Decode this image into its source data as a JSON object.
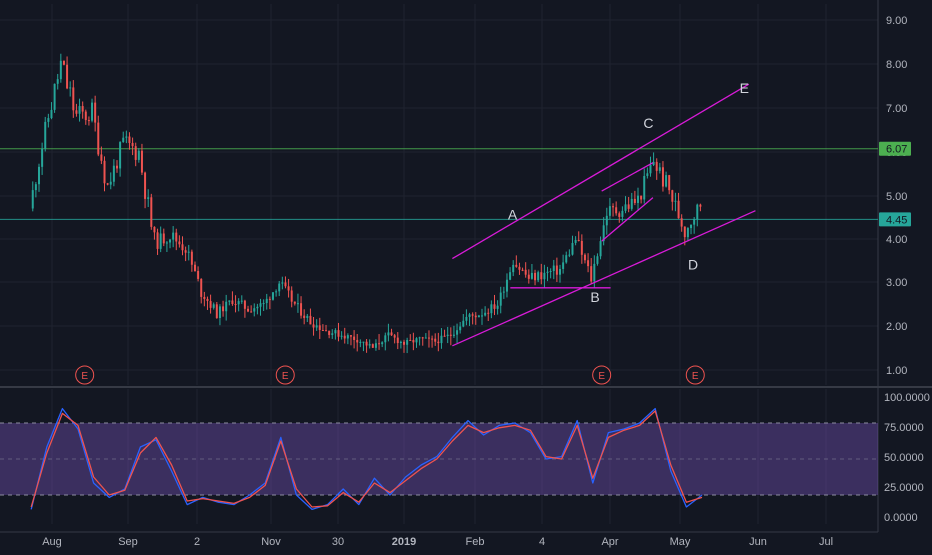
{
  "chart_data": [
    {
      "type": "candlestick",
      "title": "",
      "xlabel": "",
      "ylabel": "",
      "ylim": [
        0.7,
        9.4
      ],
      "y_ticks": [
        "9.00",
        "8.00",
        "7.00",
        "6.00",
        "5.00",
        "4.00",
        "3.00",
        "2.00",
        "1.00"
      ],
      "x_tick_labels": [
        "Aug",
        "Sep",
        "2",
        "Nov",
        "30",
        "2019",
        "Feb",
        "4",
        "Apr",
        "May",
        "Jun",
        "Jul"
      ],
      "x_range": [
        "2018-07-15",
        "2019-07-25"
      ],
      "grid": true,
      "price_level_lines": [
        {
          "value": 6.07,
          "label": "6.07",
          "color": "#4caf50"
        },
        {
          "value": 4.45,
          "label": "4.45",
          "color": "#26a69a"
        }
      ],
      "earnings_markers": [
        {
          "date": "2018-08-08",
          "label": "E"
        },
        {
          "date": "2018-11-06",
          "label": "E"
        },
        {
          "date": "2019-03-28",
          "label": "E"
        },
        {
          "date": "2019-05-09",
          "label": "E"
        }
      ],
      "annotations": [
        {
          "label": "A",
          "date": "2019-02-16",
          "value": 4.45
        },
        {
          "label": "B",
          "date": "2019-03-25",
          "value": 2.55
        },
        {
          "label": "C",
          "date": "2019-04-18",
          "value": 6.55
        },
        {
          "label": "D",
          "date": "2019-05-08",
          "value": 3.3
        },
        {
          "label": "E",
          "date": "2019-05-31",
          "value": 7.35
        }
      ],
      "trendlines": [
        {
          "from": {
            "date": "2019-01-20",
            "value": 3.55
          },
          "to": {
            "date": "2019-06-02",
            "value": 7.55
          }
        },
        {
          "from": {
            "date": "2019-01-20",
            "value": 1.55
          },
          "to": {
            "date": "2019-06-05",
            "value": 4.65
          }
        },
        {
          "from": {
            "date": "2019-02-15",
            "value": 2.88
          },
          "to": {
            "date": "2019-04-01",
            "value": 2.88
          }
        },
        {
          "from": {
            "date": "2019-03-28",
            "value": 5.1
          },
          "to": {
            "date": "2019-04-20",
            "value": 5.75
          }
        },
        {
          "from": {
            "date": "2019-03-28",
            "value": 3.95
          },
          "to": {
            "date": "2019-04-20",
            "value": 4.95
          }
        }
      ],
      "colors": {
        "up": "#26a69a",
        "down": "#ef5350",
        "trendline": "#d81bd8"
      },
      "series": [
        {
          "x": [
            "2018-07-15",
            "2018-07-22",
            "2018-07-29",
            "2018-08-05",
            "2018-08-12",
            "2018-08-19",
            "2018-08-26",
            "2018-09-02",
            "2018-09-09",
            "2018-09-16",
            "2018-09-23",
            "2018-09-30",
            "2018-10-07",
            "2018-10-14",
            "2018-10-21",
            "2018-10-28",
            "2018-11-04",
            "2018-11-11",
            "2018-11-18",
            "2018-11-25",
            "2018-12-02",
            "2018-12-09",
            "2018-12-16",
            "2018-12-23",
            "2018-12-30",
            "2019-01-06",
            "2019-01-13",
            "2019-01-20",
            "2019-01-27",
            "2019-02-03",
            "2019-02-10",
            "2019-02-17",
            "2019-02-24",
            "2019-03-03",
            "2019-03-10",
            "2019-03-17",
            "2019-03-24",
            "2019-03-31",
            "2019-04-07",
            "2019-04-14",
            "2019-04-21",
            "2019-04-28",
            "2019-05-05",
            "2019-05-12"
          ],
          "close": [
            4.7,
            6.5,
            8.0,
            6.8,
            6.9,
            5.2,
            6.2,
            6.0,
            3.9,
            4.1,
            3.8,
            2.8,
            2.3,
            2.6,
            2.4,
            2.5,
            3.0,
            2.5,
            2.1,
            1.9,
            1.8,
            1.7,
            1.5,
            1.8,
            1.6,
            1.7,
            1.65,
            1.8,
            2.2,
            2.3,
            2.5,
            3.5,
            3.1,
            3.2,
            3.3,
            4.0,
            3.1,
            4.6,
            4.7,
            4.9,
            5.8,
            5.1,
            4.2,
            4.8
          ]
        }
      ]
    },
    {
      "type": "line",
      "title": "",
      "ylim": [
        0,
        100
      ],
      "y_ticks": [
        "100.0000",
        "75.0000",
        "50.0000",
        "25.0000",
        "0.0000"
      ],
      "band": [
        20,
        80
      ],
      "series": [
        {
          "color": "#2962ff",
          "x": [
            "2018-07-15",
            "2018-07-22",
            "2018-07-29",
            "2018-08-05",
            "2018-08-12",
            "2018-08-19",
            "2018-08-26",
            "2018-09-02",
            "2018-09-09",
            "2018-09-16",
            "2018-09-23",
            "2018-09-30",
            "2018-10-07",
            "2018-10-14",
            "2018-10-21",
            "2018-10-28",
            "2018-11-04",
            "2018-11-11",
            "2018-11-18",
            "2018-11-25",
            "2018-12-02",
            "2018-12-09",
            "2018-12-16",
            "2018-12-23",
            "2018-12-30",
            "2019-01-06",
            "2019-01-13",
            "2019-01-20",
            "2019-01-27",
            "2019-02-03",
            "2019-02-10",
            "2019-02-17",
            "2019-02-24",
            "2019-03-03",
            "2019-03-10",
            "2019-03-17",
            "2019-03-24",
            "2019-03-31",
            "2019-04-07",
            "2019-04-14",
            "2019-04-21",
            "2019-04-28",
            "2019-05-05",
            "2019-05-12"
          ],
          "values": [
            8,
            60,
            92,
            75,
            30,
            18,
            25,
            60,
            66,
            40,
            12,
            18,
            14,
            12,
            20,
            30,
            68,
            20,
            8,
            12,
            25,
            12,
            34,
            20,
            35,
            45,
            52,
            68,
            82,
            70,
            78,
            80,
            72,
            50,
            52,
            82,
            30,
            72,
            75,
            80,
            92,
            40,
            10,
            20
          ]
        },
        {
          "color": "#ef5350",
          "x": [
            "2018-07-15",
            "2018-07-22",
            "2018-07-29",
            "2018-08-05",
            "2018-08-12",
            "2018-08-19",
            "2018-08-26",
            "2018-09-02",
            "2018-09-09",
            "2018-09-16",
            "2018-09-23",
            "2018-09-30",
            "2018-10-07",
            "2018-10-14",
            "2018-10-21",
            "2018-10-28",
            "2018-11-04",
            "2018-11-11",
            "2018-11-18",
            "2018-11-25",
            "2018-12-02",
            "2018-12-09",
            "2018-12-16",
            "2018-12-23",
            "2018-12-30",
            "2019-01-06",
            "2019-01-13",
            "2019-01-20",
            "2019-01-27",
            "2019-02-03",
            "2019-02-10",
            "2019-02-17",
            "2019-02-24",
            "2019-03-03",
            "2019-03-10",
            "2019-03-17",
            "2019-03-24",
            "2019-03-31",
            "2019-04-07",
            "2019-04-14",
            "2019-04-21",
            "2019-04-28",
            "2019-05-05",
            "2019-05-12"
          ],
          "values": [
            10,
            55,
            88,
            78,
            35,
            20,
            24,
            55,
            68,
            45,
            15,
            17,
            15,
            13,
            18,
            28,
            65,
            25,
            10,
            11,
            22,
            14,
            30,
            22,
            32,
            42,
            50,
            65,
            78,
            72,
            76,
            78,
            74,
            52,
            50,
            78,
            34,
            68,
            74,
            78,
            90,
            45,
            14,
            18
          ]
        }
      ]
    }
  ]
}
